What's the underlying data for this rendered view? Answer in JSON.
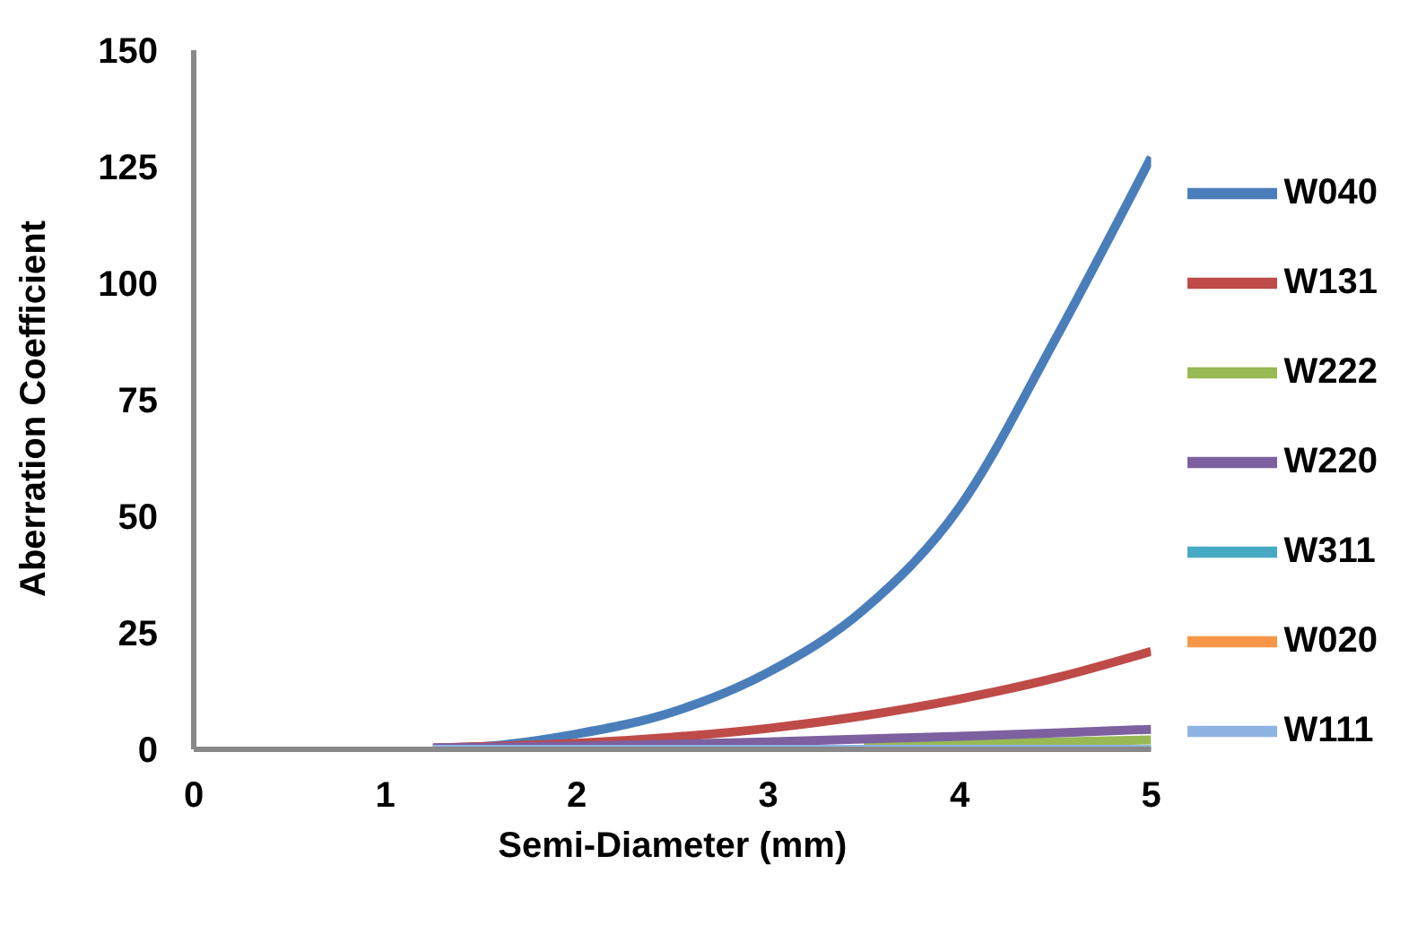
{
  "chart_data": {
    "type": "line",
    "xlabel": "Semi-Diameter (mm)",
    "ylabel": "Aberration Coefficient",
    "x": [
      1.25,
      1.5,
      2,
      2.5,
      3,
      3.5,
      4,
      4.5,
      5
    ],
    "series": [
      {
        "name": "W040",
        "color": "#4a7ebb",
        "values": [
          0.3,
          0.6,
          3.3,
          8,
          16.5,
          30,
          52,
          88,
          127
        ]
      },
      {
        "name": "W131",
        "color": "#be4b48",
        "values": [
          0.3,
          0.6,
          1.3,
          2.6,
          4.5,
          7.2,
          10.8,
          15.3,
          21
        ]
      },
      {
        "name": "W222",
        "color": "#98b954",
        "values": [
          null,
          null,
          null,
          null,
          null,
          1,
          1.3,
          1.6,
          2
        ]
      },
      {
        "name": "W220",
        "color": "#7d60a0",
        "values": [
          0.3,
          0.4,
          0.7,
          1.1,
          1.6,
          2.2,
          2.8,
          3.5,
          4.3
        ]
      },
      {
        "name": "W311",
        "color": "#46aac5",
        "values": [
          null,
          null,
          null,
          null,
          null,
          null,
          null,
          null,
          null
        ]
      },
      {
        "name": "W020",
        "color": "#f79646",
        "values": [
          null,
          null,
          null,
          null,
          null,
          null,
          null,
          null,
          null
        ]
      },
      {
        "name": "W111",
        "color": "#8eb4e3",
        "values": [
          0,
          0,
          0,
          0,
          0,
          0,
          0,
          0,
          0
        ]
      }
    ],
    "xlim": [
      0,
      5
    ],
    "xticks": [
      0,
      1,
      2,
      3,
      4,
      5
    ],
    "ylim": [
      0,
      150
    ],
    "yticks": [
      0,
      25,
      50,
      75,
      100,
      125,
      150
    ],
    "grid": false,
    "legend": "right",
    "marker": "none",
    "line_style": "solid"
  }
}
